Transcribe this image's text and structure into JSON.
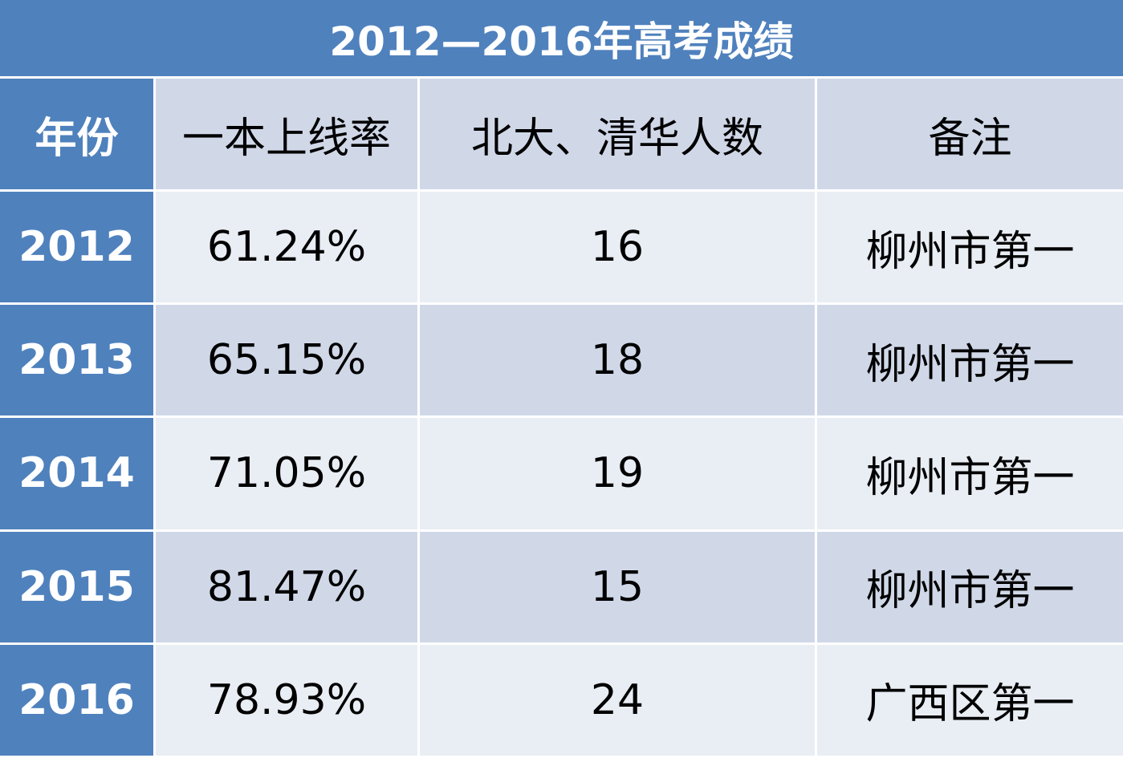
{
  "table": {
    "title": "2012—2016年高考成绩",
    "header": [
      "年份",
      "一本上线率",
      "北大、清华人数",
      "备注"
    ],
    "rows": [
      [
        "2012",
        "61.24%",
        "16",
        "柳州市第一"
      ],
      [
        "2013",
        "65.15%",
        "18",
        "柳州市第一"
      ],
      [
        "2014",
        "71.05%",
        "19",
        "柳州市第一"
      ],
      [
        "2015",
        "81.47%",
        "15",
        "柳州市第一"
      ],
      [
        "2016",
        "78.93%",
        "24",
        "广西区第一"
      ]
    ]
  }
}
